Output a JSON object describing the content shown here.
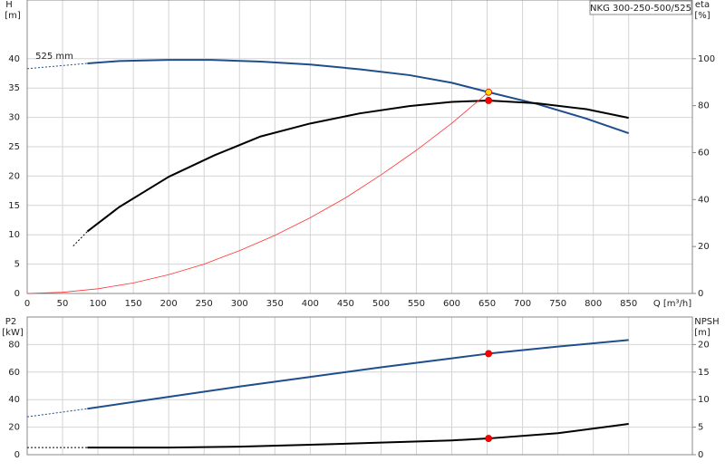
{
  "chart_data": [
    {
      "type": "line",
      "title": "NKG 300-250-500/525",
      "ylabel": "H",
      "yunit": "[m]",
      "y2label": "eta",
      "y2unit": "[%]",
      "xlabel": "Q [m³/h]",
      "annotation": "525 mm",
      "xlim": [
        0,
        940
      ],
      "xticks": [
        0,
        50,
        100,
        150,
        200,
        250,
        300,
        350,
        400,
        450,
        500,
        550,
        600,
        650,
        700,
        750,
        800,
        850
      ],
      "ylim": [
        0,
        50
      ],
      "yticks": [
        0,
        5,
        10,
        15,
        20,
        25,
        30,
        35,
        40
      ],
      "y2lim": [
        0,
        125
      ],
      "y2ticks": [
        0,
        20,
        40,
        60,
        80,
        100
      ],
      "grid": true,
      "series": [
        {
          "color": "#1f4e8c",
          "style": "dashed",
          "x": [
            0,
            85
          ],
          "values": [
            38.3,
            39.2
          ]
        },
        {
          "color": "#1f4e8c",
          "style": "solid",
          "x": [
            85,
            130,
            200,
            260,
            330,
            400,
            470,
            540,
            600,
            652,
            720,
            790,
            850
          ],
          "values": [
            39.2,
            39.6,
            39.8,
            39.8,
            39.5,
            39.0,
            38.2,
            37.2,
            35.9,
            34.3,
            32.3,
            29.8,
            27.3
          ]
        },
        {
          "color": "#000000",
          "style": "dashed",
          "axis": "y2",
          "x": [
            65,
            85
          ],
          "values": [
            20.2,
            26.4
          ]
        },
        {
          "color": "#000000",
          "style": "solid",
          "axis": "y2",
          "x": [
            85,
            130,
            200,
            265,
            330,
            400,
            470,
            540,
            600,
            652,
            720,
            790,
            850
          ],
          "values": [
            26.4,
            36.8,
            49.7,
            58.9,
            66.9,
            72.4,
            76.7,
            79.8,
            81.6,
            82.2,
            81.0,
            78.5,
            74.8
          ]
        },
        {
          "color": "#ff3333",
          "style": "thin",
          "x": [
            0,
            50,
            100,
            150,
            200,
            250,
            300,
            350,
            400,
            450,
            500,
            550,
            600,
            652
          ],
          "values": [
            0,
            0.2,
            0.8,
            1.8,
            3.2,
            5.0,
            7.3,
            9.9,
            12.9,
            16.3,
            20.2,
            24.4,
            29.0,
            34.3
          ]
        },
        {
          "color": "#ffdd00",
          "style": "marker",
          "x": [
            652
          ],
          "values": [
            34.3
          ]
        },
        {
          "color": "#ff0000",
          "style": "marker",
          "axis": "y2",
          "x": [
            652
          ],
          "values": [
            82.2
          ]
        }
      ]
    },
    {
      "type": "line",
      "ylabel": "P2",
      "yunit": "[kW]",
      "y2label": "NPSH",
      "y2unit": "[m]",
      "xlim": [
        0,
        940
      ],
      "ylim": [
        0,
        100
      ],
      "yticks": [
        0,
        20,
        40,
        60,
        80
      ],
      "y2lim": [
        0,
        25
      ],
      "y2ticks": [
        0,
        5,
        10,
        15,
        20
      ],
      "grid": true,
      "series": [
        {
          "color": "#1f4e8c",
          "style": "dashed",
          "x": [
            0,
            85
          ],
          "values": [
            27.5,
            33.4
          ]
        },
        {
          "color": "#1f4e8c",
          "style": "solid",
          "x": [
            85,
            200,
            300,
            400,
            500,
            600,
            652,
            750,
            850
          ],
          "values": [
            33.4,
            42,
            49.5,
            56.5,
            63.5,
            70,
            73.4,
            78.5,
            83.3
          ]
        },
        {
          "color": "#000000",
          "style": "dashed",
          "axis": "y2",
          "x": [
            0,
            85
          ],
          "values": [
            1.3,
            1.3
          ]
        },
        {
          "color": "#000000",
          "style": "solid",
          "axis": "y2",
          "x": [
            85,
            200,
            300,
            400,
            500,
            600,
            652,
            750,
            850
          ],
          "values": [
            1.3,
            1.3,
            1.45,
            1.8,
            2.2,
            2.6,
            2.95,
            3.9,
            5.6
          ]
        },
        {
          "color": "#ff0000",
          "style": "marker",
          "x": [
            652
          ],
          "values": [
            73.4
          ]
        },
        {
          "color": "#ff0000",
          "style": "marker",
          "axis": "y2",
          "x": [
            652
          ],
          "values": [
            2.95
          ]
        }
      ]
    }
  ]
}
